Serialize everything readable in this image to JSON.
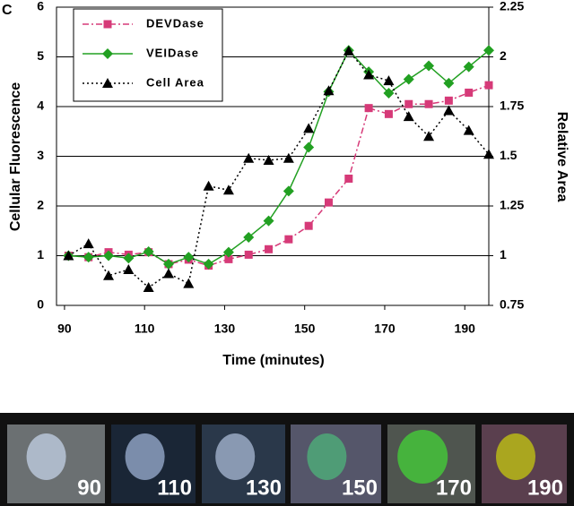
{
  "panel_label": "C",
  "chart_data": {
    "type": "line",
    "x_label": "Time (minutes)",
    "y_label": "Cellular Fluorescence",
    "y2_label": "Relative Area",
    "x": [
      91,
      96,
      101,
      106,
      111,
      116,
      121,
      126,
      131,
      136,
      141,
      146,
      151,
      156,
      161,
      166,
      171,
      176,
      181,
      186,
      191,
      196
    ],
    "xlim": [
      88,
      196
    ],
    "xticks": [
      90,
      110,
      130,
      150,
      170,
      190
    ],
    "ylim": [
      0,
      6
    ],
    "yticks": [
      0,
      1,
      2,
      3,
      4,
      5,
      6
    ],
    "y2lim": [
      0.75,
      2.25
    ],
    "y2ticks": [
      0.75,
      1,
      1.25,
      1.5,
      1.75,
      2,
      2.25
    ],
    "grid": true,
    "legend": "upper left",
    "series": [
      {
        "name": "DEVDase",
        "color": "#d63a78",
        "line_style": "dashdot",
        "marker": "square",
        "values": [
          1.0,
          0.97,
          1.07,
          1.02,
          1.07,
          0.83,
          0.92,
          0.8,
          0.93,
          1.02,
          1.13,
          1.33,
          1.6,
          2.07,
          2.55,
          3.97,
          3.85,
          4.05,
          4.05,
          4.12,
          4.28,
          4.43
        ]
      },
      {
        "name": "VEIDase",
        "color": "#22a022",
        "line_style": "solid",
        "marker": "diamond",
        "values": [
          1.0,
          0.97,
          1.0,
          0.95,
          1.08,
          0.83,
          0.97,
          0.83,
          1.07,
          1.37,
          1.7,
          2.3,
          3.18,
          4.3,
          5.13,
          4.7,
          4.27,
          4.55,
          4.82,
          4.47,
          4.8,
          5.13
        ]
      },
      {
        "name": "Cell Area",
        "color": "#000000",
        "line_style": "dotted",
        "marker": "triangle",
        "axis": "y2",
        "values": [
          1.0,
          1.06,
          0.9,
          0.93,
          0.84,
          0.91,
          0.86,
          1.35,
          1.33,
          1.49,
          1.48,
          1.49,
          1.64,
          1.83,
          2.03,
          1.91,
          1.88,
          1.7,
          1.6,
          1.73,
          1.63,
          1.51
        ]
      }
    ]
  },
  "panels": [
    "90",
    "110",
    "130",
    "150",
    "170",
    "190"
  ]
}
